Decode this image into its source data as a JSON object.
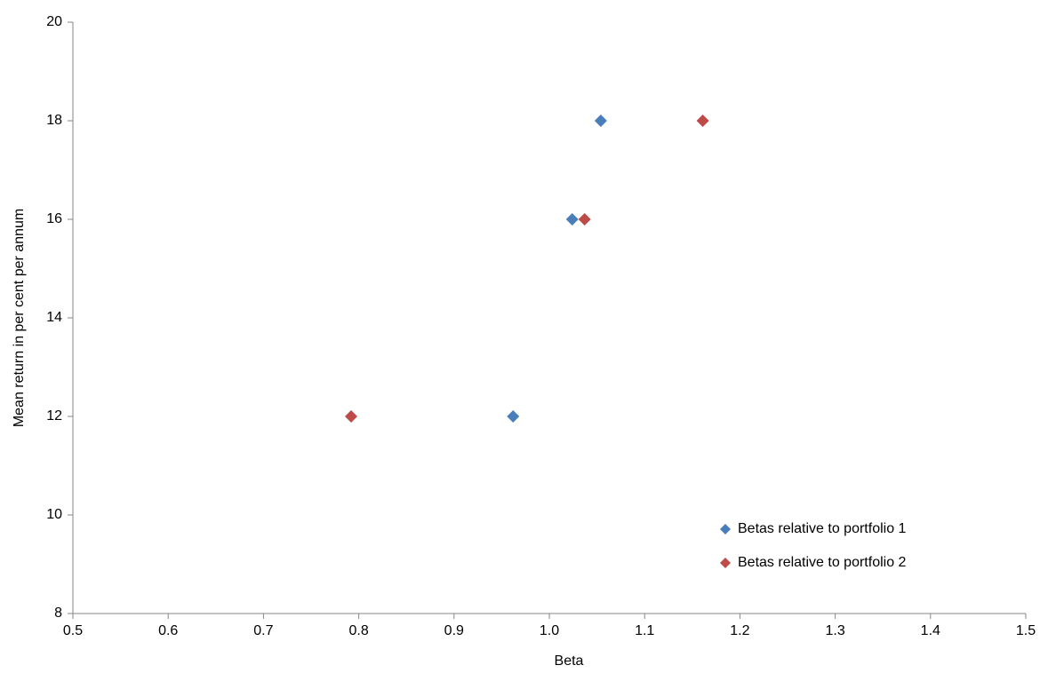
{
  "chart_data": {
    "type": "scatter",
    "xlabel": "Beta",
    "ylabel": "Mean return in per cent per annum",
    "series": [
      {
        "name": "Betas relative to portfolio 1",
        "color": "#4a7ebb",
        "x": [
          0.962,
          1.024,
          1.054
        ],
        "values": [
          12,
          16,
          18
        ]
      },
      {
        "name": "Betas relative to portfolio 2",
        "color": "#be4b48",
        "x": [
          0.792,
          1.037,
          1.161
        ],
        "values": [
          12,
          16,
          18
        ]
      }
    ],
    "xlim": [
      0.5,
      1.5
    ],
    "xticks": [
      0.5,
      0.6,
      0.7,
      0.8,
      0.9,
      {
        "value": 1,
        "label": "1.0"
      },
      1.1,
      1.2,
      1.3,
      1.4,
      1.5
    ],
    "ylim": [
      8,
      20
    ],
    "yticks": [
      8,
      10,
      12,
      14,
      16,
      18,
      20
    ],
    "grid": false,
    "legend": "lower right"
  }
}
